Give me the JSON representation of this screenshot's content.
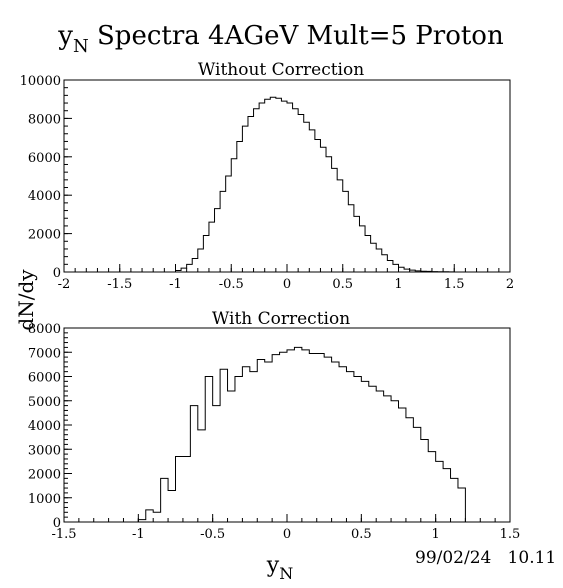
{
  "page": {
    "title_main": "y",
    "title_sub": "N",
    "title_rest": " Spectra 4AGeV Mult=5 Proton",
    "ylabel": "dN/dy",
    "xlabel_main": "y",
    "xlabel_sub": "N",
    "datestamp": "99/02/24   10.11"
  },
  "chart_data": [
    {
      "type": "bar",
      "title": "Without Correction",
      "xlabel": "y",
      "ylabel": "dN/dy",
      "xlim": [
        -2,
        2
      ],
      "ylim": [
        0,
        10000
      ],
      "xticks": [
        "-2",
        "-1.5",
        "-1",
        "-0.5",
        "0",
        "0.5",
        "1",
        "1.5",
        "2"
      ],
      "yticks": [
        "0",
        "2000",
        "4000",
        "6000",
        "8000",
        "10000"
      ],
      "bin_width": 0.05,
      "bin_start": -1.0,
      "values": [
        80,
        200,
        400,
        700,
        1200,
        1900,
        2600,
        3300,
        4200,
        5000,
        5900,
        6800,
        7600,
        8100,
        8500,
        8800,
        9000,
        9100,
        9050,
        8900,
        8800,
        8500,
        8200,
        7800,
        7400,
        6900,
        6500,
        6000,
        5400,
        4800,
        4200,
        3500,
        2900,
        2400,
        1900,
        1500,
        1200,
        900,
        600,
        400,
        250,
        150,
        100,
        60,
        40,
        30,
        20,
        15,
        10,
        5
      ]
    },
    {
      "type": "bar",
      "title": "With Correction",
      "xlabel": "y",
      "ylabel": "dN/dy",
      "xlim": [
        -1.5,
        1.5
      ],
      "ylim": [
        0,
        8000
      ],
      "xticks": [
        "-1.5",
        "-1",
        "-0.5",
        "0",
        "0.5",
        "1",
        "1.5"
      ],
      "yticks": [
        "0",
        "1000",
        "2000",
        "3000",
        "4000",
        "5000",
        "6000",
        "7000",
        "8000"
      ],
      "bin_width": 0.05,
      "bin_start": -1.0,
      "values": [
        100,
        500,
        400,
        1800,
        1300,
        2700,
        2700,
        4800,
        3800,
        6000,
        4800,
        6300,
        5400,
        6000,
        6400,
        6200,
        6700,
        6600,
        6900,
        7000,
        7100,
        7200,
        7100,
        6950,
        6950,
        6800,
        6600,
        6400,
        6200,
        6000,
        5800,
        5600,
        5400,
        5200,
        5000,
        4700,
        4300,
        3900,
        3400,
        2900,
        2500,
        2200,
        1800,
        1400,
        0
      ]
    }
  ]
}
